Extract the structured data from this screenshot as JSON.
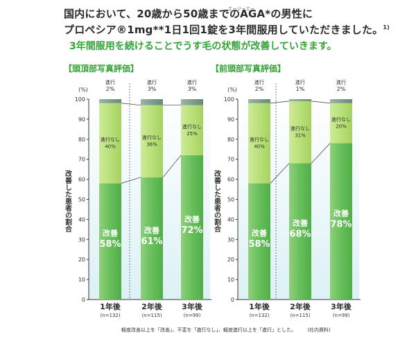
{
  "header": {
    "line1": "国内において、20歳から50歳までのAGA*の男性に",
    "line1_ruby": "エージーエー",
    "line2": "プロペシア®1mg**1日1回1錠を3年間服用していただきました。",
    "line2_ref": "1)",
    "subtitle": "3年間服用を続けることでうす毛の状態が改善していきます。"
  },
  "colors": {
    "improve": "#66bf5a",
    "nochange": "#b9e07a",
    "progress": "#7f9e8d",
    "accent": "#33a338",
    "bg_gradient": "#dcf1f6"
  },
  "chart_data": [
    {
      "type": "bar",
      "stacked": true,
      "title": "【頭頂部写真評価】",
      "ylabel": "改善した患者の割合",
      "yunit": "(%)",
      "ylim": [
        0,
        100
      ],
      "yticks": [
        0,
        10,
        20,
        30,
        40,
        50,
        60,
        70,
        80,
        90,
        100
      ],
      "categories": [
        "1年後",
        "2年後",
        "3年後"
      ],
      "n_labels": [
        "(n=132)",
        "(n=115)",
        "(n=99)"
      ],
      "series": [
        {
          "name": "改善",
          "values": [
            58,
            61,
            72
          ],
          "labels": [
            "58%",
            "61%",
            "72%"
          ]
        },
        {
          "name": "進行なし",
          "values": [
            40,
            36,
            25
          ],
          "labels": [
            "40%",
            "36%",
            "25%"
          ]
        },
        {
          "name": "進行",
          "values": [
            2,
            3,
            3
          ],
          "labels": [
            "2%",
            "3%",
            "3%"
          ]
        }
      ]
    },
    {
      "type": "bar",
      "stacked": true,
      "title": "【前頭部写真評価】",
      "ylabel": "改善した患者の割合",
      "yunit": "(%)",
      "ylim": [
        0,
        100
      ],
      "yticks": [
        0,
        10,
        20,
        30,
        40,
        50,
        60,
        70,
        80,
        90,
        100
      ],
      "categories": [
        "1年後",
        "2年後",
        "3年後"
      ],
      "n_labels": [
        "(n=132)",
        "(n=115)",
        "(n=99)"
      ],
      "series": [
        {
          "name": "改善",
          "values": [
            58,
            68,
            78
          ],
          "labels": [
            "58%",
            "68%",
            "78%"
          ]
        },
        {
          "name": "進行なし",
          "values": [
            40,
            31,
            20
          ],
          "labels": [
            "40%",
            "31%",
            "20%"
          ]
        },
        {
          "name": "進行",
          "values": [
            2,
            1,
            2
          ],
          "labels": [
            "2%",
            "1%",
            "2%"
          ]
        }
      ]
    }
  ],
  "footnote": "軽度改善以上を「改善」、不変を「進行なし」、軽度進行以上を「進行」とした。",
  "source": "(社内資料)"
}
